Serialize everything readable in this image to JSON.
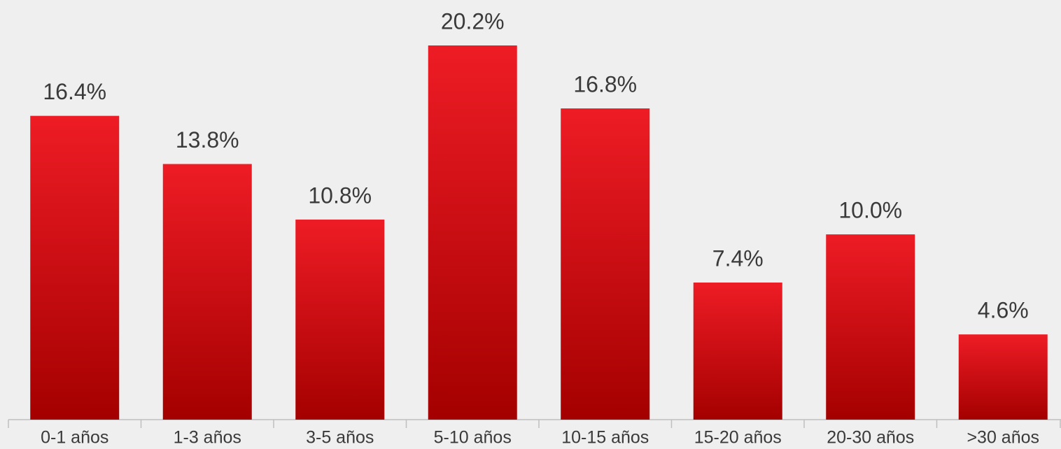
{
  "chart_data": {
    "type": "bar",
    "categories": [
      "0-1 años",
      "1-3 años",
      "3-5 años",
      "5-10 años",
      "10-15 años",
      "15-20 años",
      "20-30 años",
      ">30 años"
    ],
    "values": [
      16.4,
      13.8,
      10.8,
      20.2,
      16.8,
      7.4,
      10.0,
      4.6
    ],
    "value_labels": [
      "16.4%",
      "13.8%",
      "10.8%",
      "20.2%",
      "16.8%",
      "7.4%",
      "10.0%",
      "4.6%"
    ],
    "color": "#ee1c25"
  }
}
